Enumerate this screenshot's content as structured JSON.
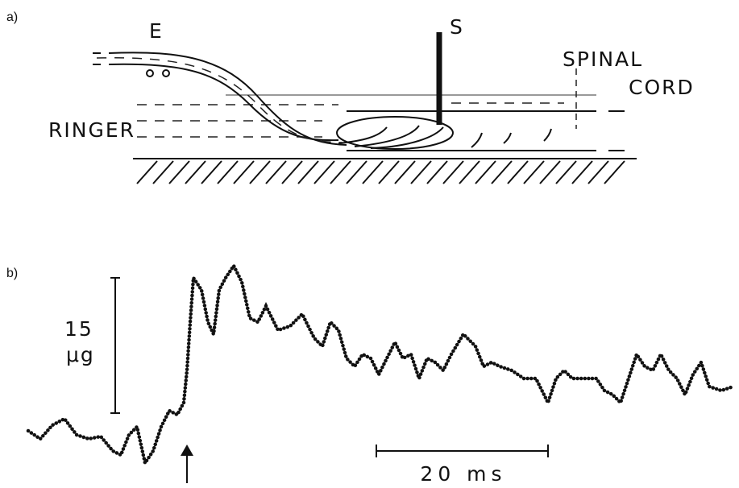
{
  "panel_a": {
    "label": "a)",
    "electrode": "E",
    "stimulator": "S",
    "tissue": [
      "SPINAL",
      "CORD"
    ],
    "medium": "RINGER"
  },
  "panel_b": {
    "label": "b)",
    "force_scale": [
      "15",
      "μg"
    ],
    "time_scale": "20 ms"
  }
}
